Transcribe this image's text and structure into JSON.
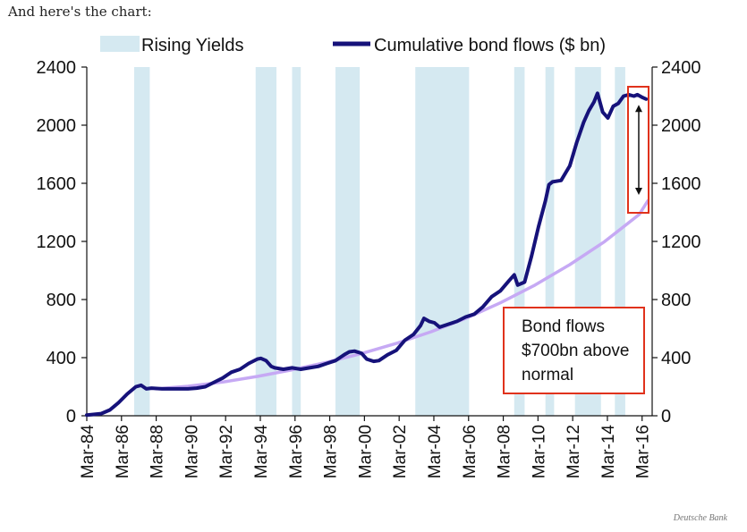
{
  "intro_text": "And here's the chart:",
  "source_credit": "Deutsche Bank",
  "chart_data": {
    "type": "line",
    "title": "",
    "xlabel": "",
    "ylabel": "",
    "ylim": [
      0,
      2400
    ],
    "yticks": [
      0,
      400,
      800,
      1200,
      1600,
      2000,
      2400
    ],
    "ytick_labels": [
      "0",
      "400",
      "800",
      "1200",
      "1600",
      "2000",
      "2400"
    ],
    "x_range": [
      1984.17,
      2016.75
    ],
    "xticks": [
      1984.17,
      1986.17,
      1988.17,
      1990.17,
      1992.17,
      1994.17,
      1996.17,
      1998.17,
      2000.17,
      2002.17,
      2004.17,
      2006.17,
      2008.17,
      2010.17,
      2012.17,
      2014.17,
      2016.17
    ],
    "xtick_labels": [
      "Mar-84",
      "Mar-86",
      "Mar-88",
      "Mar-90",
      "Mar-92",
      "Mar-94",
      "Mar-96",
      "Mar-98",
      "Mar-00",
      "Mar-02",
      "Mar-04",
      "Mar-06",
      "Mar-08",
      "Mar-10",
      "Mar-12",
      "Mar-14",
      "Mar-16"
    ],
    "grid": false,
    "legend_position": "top",
    "legend": [
      {
        "label": "Rising Yields",
        "kind": "band",
        "color": "#d5e9f1"
      },
      {
        "label": "Cumulative bond flows ($ bn)",
        "kind": "line",
        "color": "#16127a"
      }
    ],
    "rising_yield_periods": [
      [
        1986.9,
        1987.8
      ],
      [
        1993.9,
        1995.1
      ],
      [
        1996.0,
        1996.5
      ],
      [
        1998.5,
        1999.9
      ],
      [
        2003.1,
        2006.2
      ],
      [
        2008.8,
        2009.4
      ],
      [
        2010.6,
        2011.1
      ],
      [
        2012.3,
        2013.8
      ],
      [
        2014.6,
        2015.2
      ]
    ],
    "series": [
      {
        "name": "Cumulative bond flows ($ bn)",
        "color": "#16127a",
        "x": [
          1984.17,
          1985.0,
          1985.5,
          1986.0,
          1986.5,
          1987.0,
          1987.3,
          1987.6,
          1987.9,
          1988.5,
          1989.0,
          1989.5,
          1990.0,
          1990.5,
          1991.0,
          1991.5,
          1992.0,
          1992.5,
          1993.0,
          1993.5,
          1994.0,
          1994.2,
          1994.5,
          1994.8,
          1995.0,
          1995.5,
          1996.0,
          1996.5,
          1997.0,
          1997.5,
          1998.0,
          1998.5,
          1999.0,
          1999.3,
          1999.6,
          2000.0,
          2000.3,
          2000.7,
          2001.0,
          2001.5,
          2002.0,
          2002.5,
          2003.0,
          2003.4,
          2003.6,
          2003.9,
          2004.2,
          2004.5,
          2005.0,
          2005.5,
          2006.0,
          2006.5,
          2007.0,
          2007.5,
          2008.0,
          2008.5,
          2008.8,
          2009.0,
          2009.4,
          2009.8,
          2010.2,
          2010.6,
          2010.8,
          2011.0,
          2011.5,
          2012.0,
          2012.4,
          2012.8,
          2013.1,
          2013.4,
          2013.6,
          2013.9,
          2014.2,
          2014.5,
          2014.8,
          2015.1,
          2015.4,
          2015.7,
          2015.9,
          2016.2,
          2016.4
        ],
        "y": [
          5,
          15,
          40,
          90,
          150,
          200,
          210,
          185,
          190,
          185,
          185,
          185,
          185,
          190,
          200,
          230,
          260,
          300,
          320,
          360,
          390,
          395,
          380,
          340,
          330,
          320,
          330,
          320,
          330,
          340,
          360,
          380,
          420,
          440,
          445,
          430,
          390,
          375,
          380,
          420,
          450,
          520,
          560,
          620,
          670,
          650,
          640,
          610,
          630,
          650,
          680,
          700,
          750,
          820,
          860,
          930,
          970,
          900,
          920,
          1100,
          1300,
          1480,
          1590,
          1610,
          1620,
          1720,
          1880,
          2020,
          2100,
          2160,
          2220,
          2090,
          2050,
          2130,
          2150,
          2200,
          2210,
          2200,
          2210,
          2190,
          2180
        ]
      },
      {
        "name": "",
        "color": "#c6a9f4",
        "x": [
          1988.17,
          1990.0,
          1992.0,
          1994.0,
          1996.0,
          1998.0,
          2000.0,
          2002.0,
          2004.0,
          2006.0,
          2008.0,
          2010.0,
          2012.0,
          2014.0,
          2016.0,
          2016.5
        ],
        "y": [
          185,
          203,
          232,
          271,
          316,
          368,
          428,
          498,
          578,
          670,
          777,
          900,
          1040,
          1198,
          1385,
          1480
        ]
      }
    ],
    "annotations": [
      {
        "type": "text-box",
        "lines": [
          "Bond flows",
          "$700bn above",
          "normal"
        ],
        "border_color": "#e0321c"
      },
      {
        "type": "highlight-box",
        "border_color": "#e0321c",
        "x_range": [
          2016.0,
          2017.4
        ],
        "y_range": [
          1390,
          2260
        ]
      },
      {
        "type": "double-arrow",
        "x": 2016.65,
        "y_from": 2140,
        "y_to": 1520
      }
    ]
  }
}
